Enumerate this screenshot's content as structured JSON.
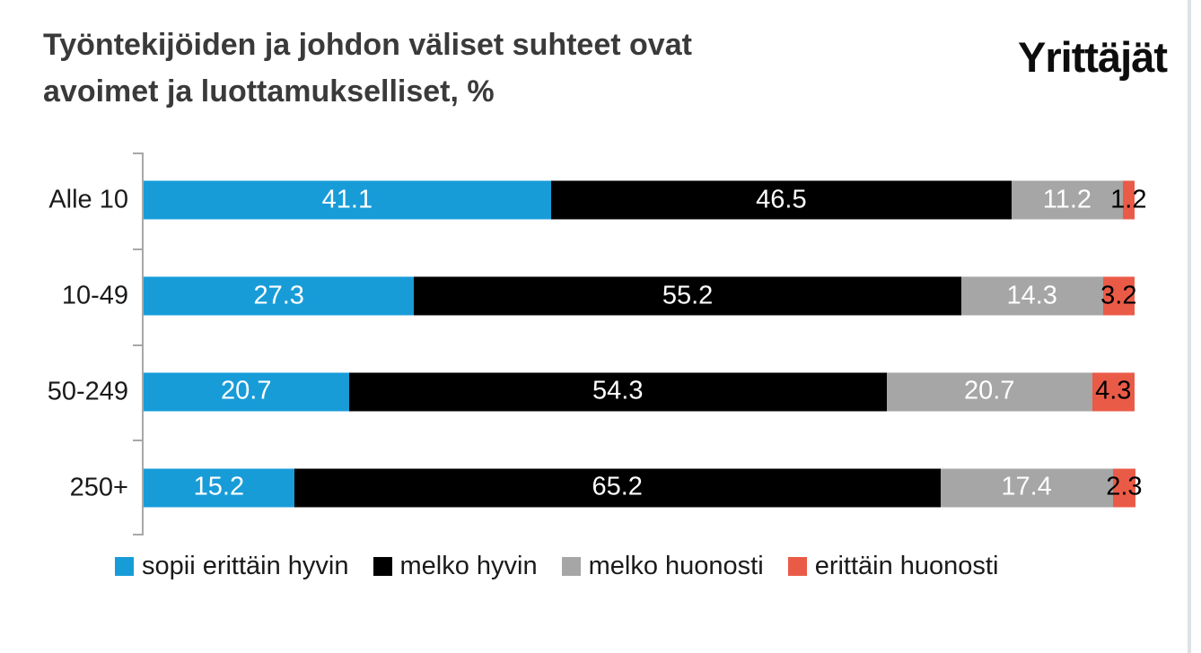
{
  "header": {
    "title_line1": "Työntekijöiden ja johdon väliset suhteet ovat",
    "title_line2": "avoimet ja luottamukselliset, %",
    "logo_text": "Yrittäjät"
  },
  "colors": {
    "blue": "#189cd8",
    "black": "#000000",
    "gray": "#a6a6a6",
    "red": "#ea5b47",
    "axis": "#a8a8a8",
    "title_text": "#3a3a3a",
    "right_border": "#dce3e7"
  },
  "chart_data": {
    "type": "bar",
    "orientation": "horizontal",
    "stacked": true,
    "unit": "%",
    "title": "Työntekijöiden ja johdon väliset suhteet ovat avoimet ja luottamukselliset, %",
    "categories": [
      "Alle 10",
      "10-49",
      "50-249",
      "250+"
    ],
    "series": [
      {
        "name": "sopii erittäin hyvin",
        "color": "#189cd8",
        "label_color": "#ffffff",
        "values": [
          41.1,
          27.3,
          20.7,
          15.2
        ]
      },
      {
        "name": "melko hyvin",
        "color": "#000000",
        "label_color": "#ffffff",
        "values": [
          46.5,
          55.2,
          54.3,
          65.2
        ]
      },
      {
        "name": "melko huonosti",
        "color": "#a6a6a6",
        "label_color": "#ffffff",
        "values": [
          11.2,
          14.3,
          20.7,
          17.4
        ]
      },
      {
        "name": "erittäin huonosti",
        "color": "#ea5b47",
        "label_color": "#000000",
        "values": [
          1.2,
          3.2,
          4.3,
          2.3
        ]
      }
    ],
    "xlim": [
      0,
      100
    ],
    "value_labels": "inside",
    "legend_position": "bottom",
    "grid": false
  }
}
